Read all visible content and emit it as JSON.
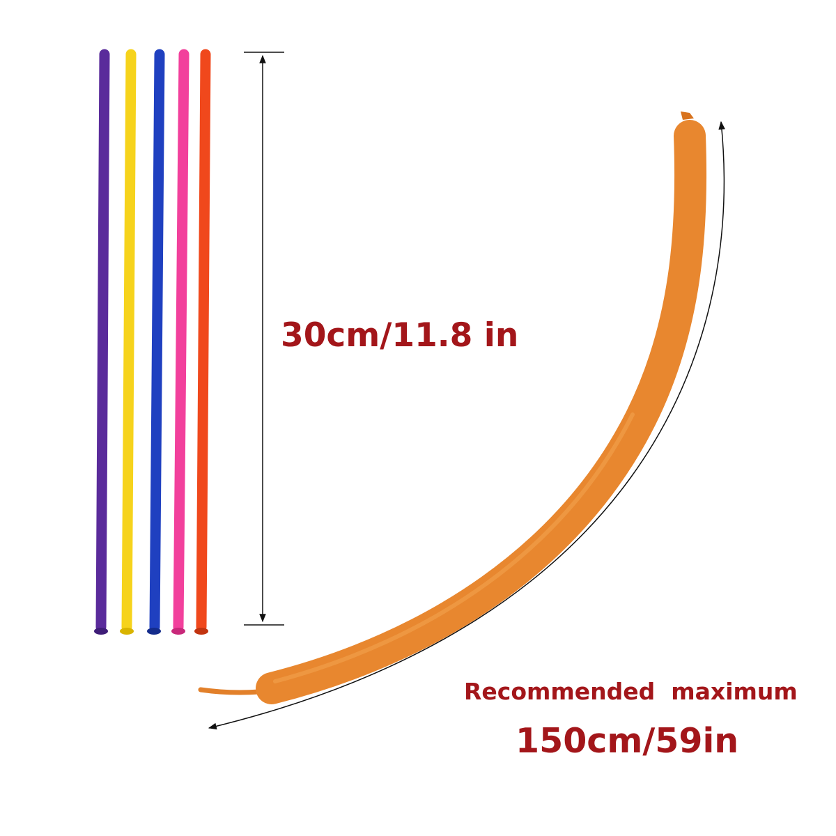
{
  "labels": {
    "short_length": "30cm/11.8 in",
    "recommended": "Recommended  maximum",
    "max_length": "150cm/59in"
  }
}
